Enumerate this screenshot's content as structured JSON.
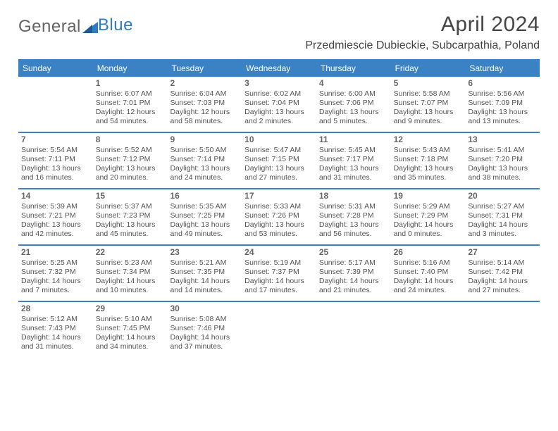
{
  "logo": {
    "part1": "General",
    "part2": "Blue"
  },
  "title": "April 2024",
  "location": "Przedmiescie Dubieckie, Subcarpathia, Poland",
  "dayNames": [
    "Sunday",
    "Monday",
    "Tuesday",
    "Wednesday",
    "Thursday",
    "Friday",
    "Saturday"
  ],
  "colors": {
    "header_bar": "#3b82c4",
    "row_divider": "#3b82c4",
    "text": "#555555",
    "title_text": "#454545",
    "logo_gray": "#646464",
    "logo_blue": "#2f7cc0"
  },
  "weeks": [
    [
      {
        "empty": true
      },
      {
        "d": "1",
        "sr": "6:07 AM",
        "ss": "7:01 PM",
        "dl1": "Daylight: 12 hours",
        "dl2": "and 54 minutes."
      },
      {
        "d": "2",
        "sr": "6:04 AM",
        "ss": "7:03 PM",
        "dl1": "Daylight: 12 hours",
        "dl2": "and 58 minutes."
      },
      {
        "d": "3",
        "sr": "6:02 AM",
        "ss": "7:04 PM",
        "dl1": "Daylight: 13 hours",
        "dl2": "and 2 minutes."
      },
      {
        "d": "4",
        "sr": "6:00 AM",
        "ss": "7:06 PM",
        "dl1": "Daylight: 13 hours",
        "dl2": "and 5 minutes."
      },
      {
        "d": "5",
        "sr": "5:58 AM",
        "ss": "7:07 PM",
        "dl1": "Daylight: 13 hours",
        "dl2": "and 9 minutes."
      },
      {
        "d": "6",
        "sr": "5:56 AM",
        "ss": "7:09 PM",
        "dl1": "Daylight: 13 hours",
        "dl2": "and 13 minutes."
      }
    ],
    [
      {
        "d": "7",
        "sr": "5:54 AM",
        "ss": "7:11 PM",
        "dl1": "Daylight: 13 hours",
        "dl2": "and 16 minutes."
      },
      {
        "d": "8",
        "sr": "5:52 AM",
        "ss": "7:12 PM",
        "dl1": "Daylight: 13 hours",
        "dl2": "and 20 minutes."
      },
      {
        "d": "9",
        "sr": "5:50 AM",
        "ss": "7:14 PM",
        "dl1": "Daylight: 13 hours",
        "dl2": "and 24 minutes."
      },
      {
        "d": "10",
        "sr": "5:47 AM",
        "ss": "7:15 PM",
        "dl1": "Daylight: 13 hours",
        "dl2": "and 27 minutes."
      },
      {
        "d": "11",
        "sr": "5:45 AM",
        "ss": "7:17 PM",
        "dl1": "Daylight: 13 hours",
        "dl2": "and 31 minutes."
      },
      {
        "d": "12",
        "sr": "5:43 AM",
        "ss": "7:18 PM",
        "dl1": "Daylight: 13 hours",
        "dl2": "and 35 minutes."
      },
      {
        "d": "13",
        "sr": "5:41 AM",
        "ss": "7:20 PM",
        "dl1": "Daylight: 13 hours",
        "dl2": "and 38 minutes."
      }
    ],
    [
      {
        "d": "14",
        "sr": "5:39 AM",
        "ss": "7:21 PM",
        "dl1": "Daylight: 13 hours",
        "dl2": "and 42 minutes."
      },
      {
        "d": "15",
        "sr": "5:37 AM",
        "ss": "7:23 PM",
        "dl1": "Daylight: 13 hours",
        "dl2": "and 45 minutes."
      },
      {
        "d": "16",
        "sr": "5:35 AM",
        "ss": "7:25 PM",
        "dl1": "Daylight: 13 hours",
        "dl2": "and 49 minutes."
      },
      {
        "d": "17",
        "sr": "5:33 AM",
        "ss": "7:26 PM",
        "dl1": "Daylight: 13 hours",
        "dl2": "and 53 minutes."
      },
      {
        "d": "18",
        "sr": "5:31 AM",
        "ss": "7:28 PM",
        "dl1": "Daylight: 13 hours",
        "dl2": "and 56 minutes."
      },
      {
        "d": "19",
        "sr": "5:29 AM",
        "ss": "7:29 PM",
        "dl1": "Daylight: 14 hours",
        "dl2": "and 0 minutes."
      },
      {
        "d": "20",
        "sr": "5:27 AM",
        "ss": "7:31 PM",
        "dl1": "Daylight: 14 hours",
        "dl2": "and 3 minutes."
      }
    ],
    [
      {
        "d": "21",
        "sr": "5:25 AM",
        "ss": "7:32 PM",
        "dl1": "Daylight: 14 hours",
        "dl2": "and 7 minutes."
      },
      {
        "d": "22",
        "sr": "5:23 AM",
        "ss": "7:34 PM",
        "dl1": "Daylight: 14 hours",
        "dl2": "and 10 minutes."
      },
      {
        "d": "23",
        "sr": "5:21 AM",
        "ss": "7:35 PM",
        "dl1": "Daylight: 14 hours",
        "dl2": "and 14 minutes."
      },
      {
        "d": "24",
        "sr": "5:19 AM",
        "ss": "7:37 PM",
        "dl1": "Daylight: 14 hours",
        "dl2": "and 17 minutes."
      },
      {
        "d": "25",
        "sr": "5:17 AM",
        "ss": "7:39 PM",
        "dl1": "Daylight: 14 hours",
        "dl2": "and 21 minutes."
      },
      {
        "d": "26",
        "sr": "5:16 AM",
        "ss": "7:40 PM",
        "dl1": "Daylight: 14 hours",
        "dl2": "and 24 minutes."
      },
      {
        "d": "27",
        "sr": "5:14 AM",
        "ss": "7:42 PM",
        "dl1": "Daylight: 14 hours",
        "dl2": "and 27 minutes."
      }
    ],
    [
      {
        "d": "28",
        "sr": "5:12 AM",
        "ss": "7:43 PM",
        "dl1": "Daylight: 14 hours",
        "dl2": "and 31 minutes."
      },
      {
        "d": "29",
        "sr": "5:10 AM",
        "ss": "7:45 PM",
        "dl1": "Daylight: 14 hours",
        "dl2": "and 34 minutes."
      },
      {
        "d": "30",
        "sr": "5:08 AM",
        "ss": "7:46 PM",
        "dl1": "Daylight: 14 hours",
        "dl2": "and 37 minutes."
      },
      {
        "empty": true
      },
      {
        "empty": true
      },
      {
        "empty": true
      },
      {
        "empty": true
      }
    ]
  ],
  "labels": {
    "sunrise_prefix": "Sunrise: ",
    "sunset_prefix": "Sunset: "
  }
}
